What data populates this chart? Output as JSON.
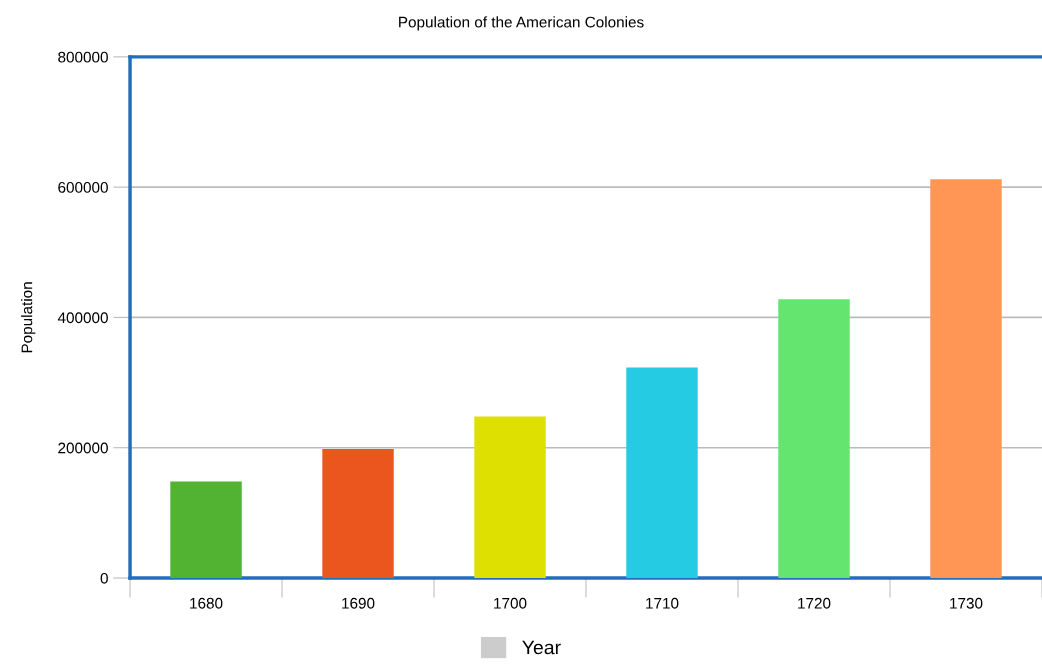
{
  "chart_data": {
    "type": "bar",
    "title": "Population of the American Colonies",
    "ylabel": "Population",
    "categories": [
      "1680",
      "1690",
      "1700",
      "1710",
      "1720",
      "1730"
    ],
    "series": [
      {
        "name": "Year",
        "color": "#cccccc",
        "colors": [
          "#52b232",
          "#ea561e",
          "#dde000",
          "#25cbe3",
          "#64e56f",
          "#ff9655"
        ],
        "values": [
          148000,
          198000,
          248000,
          323000,
          428000,
          612000
        ]
      }
    ],
    "ylim": [
      0,
      800000
    ],
    "yticks": [
      0,
      200000,
      400000,
      600000,
      800000
    ],
    "grid": "y",
    "legend": "bottom"
  }
}
